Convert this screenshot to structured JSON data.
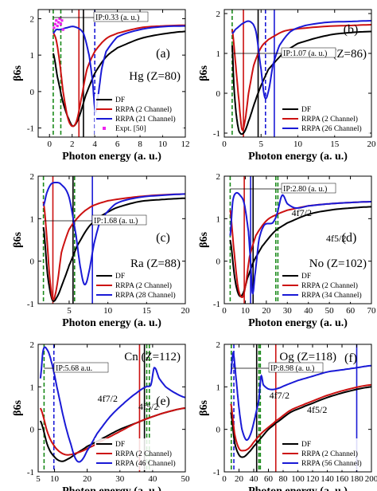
{
  "figure": {
    "colors": {
      "DF": "#000000",
      "RRPA2": "#cc1111",
      "RRPAn": "#1a1ad6",
      "IPline": "#1a8a1a",
      "expt": "#ee22ee"
    }
  },
  "chart_data": [
    {
      "panel": "(a)",
      "atom": "Hg (Z=80)",
      "type": "line",
      "xlabel": "Photon energy (a. u.)",
      "ylabel": "β6s",
      "xlim": [
        -1,
        12
      ],
      "ylim": [
        -1.25,
        2.25
      ],
      "xticks": [
        0,
        2,
        4,
        6,
        8,
        10,
        12
      ],
      "yticks": [
        -1,
        0,
        1,
        2
      ],
      "ip_label": "IP:0.33 (a. u.)",
      "legend": [
        "DF",
        "RRPA (2 Channel)",
        "RRPA (21 Channel)",
        "Expt. [50]"
      ],
      "legend_position": "bottom-right",
      "series": [
        {
          "name": "DF",
          "x": [
            0.33,
            0.7,
            1.2,
            1.7,
            2.1,
            2.6,
            3.2,
            4,
            5,
            6,
            8,
            10,
            12
          ],
          "y": [
            1.05,
            0.4,
            -0.3,
            -0.75,
            -0.95,
            -0.7,
            -0.1,
            0.5,
            0.95,
            1.2,
            1.45,
            1.58,
            1.65
          ]
        },
        {
          "name": "RRPA (2 Channel)",
          "x": [
            0.33,
            0.6,
            0.9,
            1.2,
            1.6,
            2.0,
            2.4,
            2.8,
            3.3,
            4,
            5,
            6,
            8,
            10,
            12
          ],
          "y": [
            1.6,
            1.4,
            0.8,
            0.0,
            -0.7,
            -0.95,
            -0.8,
            -0.2,
            0.6,
            1.1,
            1.45,
            1.6,
            1.75,
            1.8,
            1.82
          ]
        },
        {
          "name": "RRPA (21 Channel)",
          "x": [
            0.33,
            0.6,
            0.9,
            1.5,
            2.2,
            3.0,
            3.5,
            3.8,
            4.05,
            4.3,
            4.6,
            5,
            6,
            8,
            10,
            12
          ],
          "y": [
            1.6,
            1.7,
            1.7,
            1.75,
            1.78,
            1.6,
            1.0,
            0.3,
            -0.55,
            -0.1,
            0.6,
            1.1,
            1.5,
            1.7,
            1.78,
            1.8
          ]
        },
        {
          "name": "Expt. [50]",
          "x": [
            0.4,
            0.5,
            0.6,
            0.7,
            0.8,
            0.9,
            1.0,
            1.1,
            1.2
          ],
          "y": [
            1.75,
            1.85,
            1.95,
            1.8,
            1.9,
            2.0,
            1.85,
            1.95,
            1.7
          ]
        }
      ],
      "vlines": [
        {
          "x": 0.33,
          "c": "IP",
          "dash": true
        },
        {
          "x": 1.0,
          "c": "IP",
          "dash": true
        },
        {
          "x": 2.6,
          "c": "RRPA2"
        },
        {
          "x": 3.0,
          "c": "DF"
        },
        {
          "x": 4.0,
          "c": "RRPAn",
          "dash": true
        }
      ]
    },
    {
      "panel": "(b)",
      "atom": "Rn (Z=86)",
      "type": "line",
      "xlabel": "Photon energy (a. u.)",
      "ylabel": "β6s",
      "xlim": [
        0,
        20
      ],
      "ylim": [
        -1.1,
        2.1
      ],
      "xticks": [
        0,
        5,
        10,
        15,
        20
      ],
      "yticks": [
        -1,
        0,
        1,
        2
      ],
      "ip_label": "IP:1.07 (a. u.)",
      "legend": [
        "DF",
        "RRPA (2 Channel)",
        "RRPA (26 Channel)"
      ],
      "legend_position": "bottom-right",
      "series": [
        {
          "name": "DF",
          "x": [
            1.07,
            1.3,
            1.6,
            2.0,
            2.6,
            3.3,
            4.2,
            5,
            6,
            8,
            10,
            14,
            17,
            20
          ],
          "y": [
            1.2,
            0.2,
            -0.5,
            -0.95,
            -1.0,
            -0.7,
            -0.2,
            0.2,
            0.6,
            1.0,
            1.25,
            1.45,
            1.52,
            1.55
          ]
        },
        {
          "name": "RRPA (2 Channel)",
          "x": [
            1.07,
            1.5,
            2.0,
            2.4,
            2.8,
            3.3,
            4,
            5,
            6,
            8,
            10,
            14,
            17,
            20
          ],
          "y": [
            1.6,
            0.8,
            -0.2,
            -0.9,
            -0.7,
            0.0,
            0.7,
            1.15,
            1.35,
            1.55,
            1.62,
            1.68,
            1.7,
            1.72
          ]
        },
        {
          "name": "RRPA (26 Channel)",
          "x": [
            1.07,
            1.5,
            2.5,
            3.5,
            4.3,
            5.0,
            5.5,
            6.0,
            6.6,
            7.5,
            9,
            11,
            14,
            17,
            20
          ],
          "y": [
            1.5,
            1.6,
            1.75,
            1.8,
            1.55,
            0.6,
            -0.1,
            0.05,
            0.7,
            1.2,
            1.55,
            1.7,
            1.78,
            1.8,
            1.82
          ]
        }
      ],
      "vlines": [
        {
          "x": 1.07,
          "c": "IP",
          "dash": true
        },
        {
          "x": 2.6,
          "c": "RRPA2"
        },
        {
          "x": 4.6,
          "c": "DF"
        },
        {
          "x": 5.6,
          "c": "RRPAn",
          "dash": true
        },
        {
          "x": 6.8,
          "c": "RRPAn"
        }
      ]
    },
    {
      "panel": "(c)",
      "atom": "Ra (Z=88)",
      "type": "line",
      "xlabel": "Photon energy (a. u.)",
      "ylabel": "β6s",
      "xlim": [
        1,
        20
      ],
      "ylim": [
        -1.0,
        2.0
      ],
      "xticks": [
        5,
        10,
        15,
        20
      ],
      "yticks": [
        -1,
        0,
        1,
        2
      ],
      "ip_label": "IP:1.68 (a. u.)",
      "legend": [
        "DF",
        "RRPA (2 Channel)",
        "RRPA (28 Channel)"
      ],
      "legend_position": "bottom-right",
      "series": [
        {
          "name": "DF",
          "x": [
            1.68,
            2.2,
            2.8,
            3.4,
            4.2,
            5.0,
            6.0,
            7.5,
            9,
            11,
            14,
            17,
            20
          ],
          "y": [
            0.8,
            -0.3,
            -0.9,
            -0.85,
            -0.5,
            -0.1,
            0.35,
            0.8,
            1.05,
            1.25,
            1.4,
            1.45,
            1.48
          ]
        },
        {
          "name": "RRPA (2 Channel)",
          "x": [
            1.68,
            2.1,
            2.5,
            2.9,
            3.4,
            4.0,
            5.0,
            6.5,
            8,
            10,
            13,
            16,
            20
          ],
          "y": [
            1.4,
            0.6,
            -0.4,
            -0.9,
            -0.6,
            0.2,
            0.75,
            1.1,
            1.3,
            1.42,
            1.5,
            1.55,
            1.58
          ]
        },
        {
          "name": "RRPA (28 Channel)",
          "x": [
            1.68,
            2.1,
            2.6,
            3.2,
            4.0,
            5.0,
            5.9,
            6.5,
            7.0,
            7.5,
            8.2,
            9,
            11,
            14,
            17,
            20
          ],
          "y": [
            1.3,
            1.6,
            1.8,
            1.85,
            1.8,
            1.5,
            0.6,
            -0.2,
            -0.55,
            -0.3,
            0.4,
            0.95,
            1.35,
            1.5,
            1.55,
            1.58
          ]
        }
      ],
      "vlines": [
        {
          "x": 1.68,
          "c": "IP",
          "dash": true
        },
        {
          "x": 2.9,
          "c": "RRPA2"
        },
        {
          "x": 5.5,
          "c": "DF"
        },
        {
          "x": 5.7,
          "c": "IP",
          "dash": true
        },
        {
          "x": 8.0,
          "c": "RRPAn"
        }
      ]
    },
    {
      "panel": "(d)",
      "atom": "No (Z=102)",
      "type": "line",
      "xlabel": "Photon energy (a. u.)",
      "ylabel": "β6s",
      "xlim": [
        0,
        70
      ],
      "ylim": [
        -1.0,
        2.0
      ],
      "xticks": [
        0,
        10,
        20,
        30,
        40,
        50,
        60,
        70
      ],
      "yticks": [
        -1,
        0,
        1,
        2
      ],
      "ip_label": "IP:2.80 (a. u.)",
      "orb_labels": [
        "4f7/2",
        "4f5/2"
      ],
      "legend": [
        "DF",
        "RRPA (2 Channel)",
        "RRPA (34 Channel)"
      ],
      "legend_position": "bottom-right",
      "series": [
        {
          "name": "DF",
          "x": [
            2.8,
            5,
            7,
            9,
            11,
            14,
            18,
            24,
            30,
            40,
            50,
            60,
            70
          ],
          "y": [
            0.5,
            -0.4,
            -0.8,
            -0.75,
            -0.4,
            0.0,
            0.35,
            0.7,
            0.9,
            1.1,
            1.2,
            1.25,
            1.28
          ]
        },
        {
          "name": "RRPA (2 Channel)",
          "x": [
            2.8,
            4.5,
            6.5,
            8.5,
            10,
            12,
            15,
            20,
            25,
            30,
            40,
            50,
            60,
            70
          ],
          "y": [
            1.2,
            0.3,
            -0.6,
            -0.85,
            -0.6,
            0.1,
            0.6,
            0.95,
            1.1,
            1.2,
            1.3,
            1.35,
            1.38,
            1.4
          ]
        },
        {
          "name": "RRPA (34 Channel)",
          "x": [
            2.8,
            4,
            5.5,
            7.5,
            9.5,
            11.5,
            12.5,
            13.4,
            14.5,
            16.5,
            19,
            23,
            25,
            27.5,
            30,
            34,
            40,
            50,
            60,
            70
          ],
          "y": [
            0.6,
            1.4,
            1.6,
            1.55,
            1.35,
            0.7,
            0.0,
            -0.75,
            -0.35,
            0.5,
            0.85,
            0.9,
            1.1,
            1.55,
            1.35,
            1.25,
            1.3,
            1.35,
            1.38,
            1.4
          ]
        }
      ],
      "vlines": [
        {
          "x": 2.8,
          "c": "IP",
          "dash": true
        },
        {
          "x": 9.5,
          "c": "RRPA2"
        },
        {
          "x": 12.5,
          "c": "RRPAn"
        },
        {
          "x": 13.7,
          "c": "DF"
        },
        {
          "x": 24.5,
          "c": "IP",
          "dash": true
        },
        {
          "x": 25.5,
          "c": "IP",
          "dash": true
        }
      ]
    },
    {
      "panel": "(e)",
      "atom": "Cn (Z=112)",
      "type": "line",
      "xlabel": "Photon energy (a. u.)",
      "ylabel": "β6s",
      "xlim": [
        5,
        50
      ],
      "ylim": [
        -1.0,
        2.0
      ],
      "xticks": [
        5,
        10,
        20,
        30,
        40,
        50
      ],
      "yticks": [
        -1,
        0,
        1,
        2
      ],
      "ip_label": "IP:5.68 a.u.",
      "orb_labels": [
        "4f7/2",
        "4f5/2"
      ],
      "legend": [
        "DF",
        "RRPA (2 Channel)",
        "RRPA (46 Channel)"
      ],
      "legend_position": "bottom-right",
      "series": [
        {
          "name": "DF",
          "x": [
            5.68,
            8,
            10,
            12,
            14,
            17,
            20,
            25,
            30,
            35,
            40,
            45,
            50
          ],
          "y": [
            0.2,
            -0.4,
            -0.65,
            -0.75,
            -0.7,
            -0.55,
            -0.4,
            -0.2,
            0.0,
            0.15,
            0.3,
            0.42,
            0.5
          ]
        },
        {
          "name": "RRPA (2 Channel)",
          "x": [
            5.68,
            8,
            10,
            12,
            14,
            17,
            20,
            25,
            30,
            35,
            40,
            45,
            50
          ],
          "y": [
            0.5,
            -0.1,
            -0.4,
            -0.55,
            -0.6,
            -0.55,
            -0.45,
            -0.25,
            -0.05,
            0.15,
            0.3,
            0.42,
            0.5
          ]
        },
        {
          "name": "RRPA (46 Channel)",
          "x": [
            5.68,
            6.5,
            7.5,
            9,
            11,
            13,
            15,
            16.5,
            18,
            20,
            23,
            27,
            31,
            35,
            38,
            39.5,
            40.5,
            42,
            44,
            47,
            50
          ],
          "y": [
            1.2,
            1.85,
            1.9,
            1.6,
            0.9,
            0.2,
            -0.35,
            -0.7,
            -0.75,
            -0.5,
            -0.1,
            0.3,
            0.6,
            0.85,
            1.0,
            1.05,
            1.45,
            1.2,
            1.0,
            0.85,
            0.75
          ]
        }
      ],
      "vlines": [
        {
          "x": 6.8,
          "c": "IP",
          "dash": true
        },
        {
          "x": 9.8,
          "c": "RRPAn",
          "dash": true
        },
        {
          "x": 36,
          "c": "RRPA2"
        },
        {
          "x": 37.5,
          "c": "DF"
        },
        {
          "x": 38.2,
          "c": "IP",
          "dash": true
        },
        {
          "x": 39,
          "c": "IP",
          "dash": true
        }
      ]
    },
    {
      "panel": "(f)",
      "atom": "Og (Z=118)",
      "type": "line",
      "xlabel": "Photon energy (a. u.)",
      "ylabel": "β6s",
      "xlim": [
        0,
        200
      ],
      "ylim": [
        -1.0,
        2.0
      ],
      "xticks": [
        0,
        20,
        40,
        60,
        80,
        100,
        120,
        140,
        160,
        180,
        200
      ],
      "yticks": [
        -1,
        0,
        1,
        2
      ],
      "ip_label": "IP:8.98 (a. u.)",
      "orb_labels": [
        "4f7/2",
        "4f5/2"
      ],
      "legend": [
        "DF",
        "RRPA (2 Channel)",
        "RRPA (56 Channel)"
      ],
      "legend_position": "bottom-right",
      "series": [
        {
          "name": "DF",
          "x": [
            8.98,
            14,
            20,
            26,
            33,
            40,
            50,
            60,
            70,
            90,
            110,
            140,
            170,
            200
          ],
          "y": [
            0.4,
            -0.3,
            -0.6,
            -0.65,
            -0.55,
            -0.4,
            -0.2,
            0.0,
            0.15,
            0.4,
            0.55,
            0.75,
            0.9,
            1.0
          ]
        },
        {
          "name": "RRPA (2 Channel)",
          "x": [
            8.98,
            14,
            20,
            26,
            33,
            40,
            50,
            60,
            70,
            90,
            110,
            140,
            170,
            200
          ],
          "y": [
            0.6,
            -0.1,
            -0.45,
            -0.5,
            -0.45,
            -0.3,
            -0.1,
            0.05,
            0.2,
            0.45,
            0.6,
            0.8,
            0.95,
            1.05
          ]
        },
        {
          "name": "RRPA (56 Channel)",
          "x": [
            8.98,
            12,
            16,
            20,
            24,
            30,
            36,
            42,
            47,
            50,
            53,
            60,
            70,
            85,
            100,
            120,
            140,
            160,
            180,
            200
          ],
          "y": [
            1.3,
            1.8,
            1.2,
            0.5,
            0.0,
            -0.25,
            -0.1,
            0.3,
            0.7,
            1.25,
            1.05,
            0.95,
            0.95,
            1.05,
            1.15,
            1.25,
            1.35,
            1.4,
            1.45,
            1.5
          ]
        }
      ],
      "vlines": [
        {
          "x": 9.5,
          "c": "IP",
          "dash": true
        },
        {
          "x": 13,
          "c": "RRPAn",
          "dash": true
        },
        {
          "x": 44,
          "c": "DF"
        },
        {
          "x": 47,
          "c": "IP",
          "dash": true
        },
        {
          "x": 49,
          "c": "IP",
          "dash": true
        },
        {
          "x": 70,
          "c": "RRPA2"
        },
        {
          "x": 180,
          "c": "RRPAn"
        }
      ]
    }
  ]
}
